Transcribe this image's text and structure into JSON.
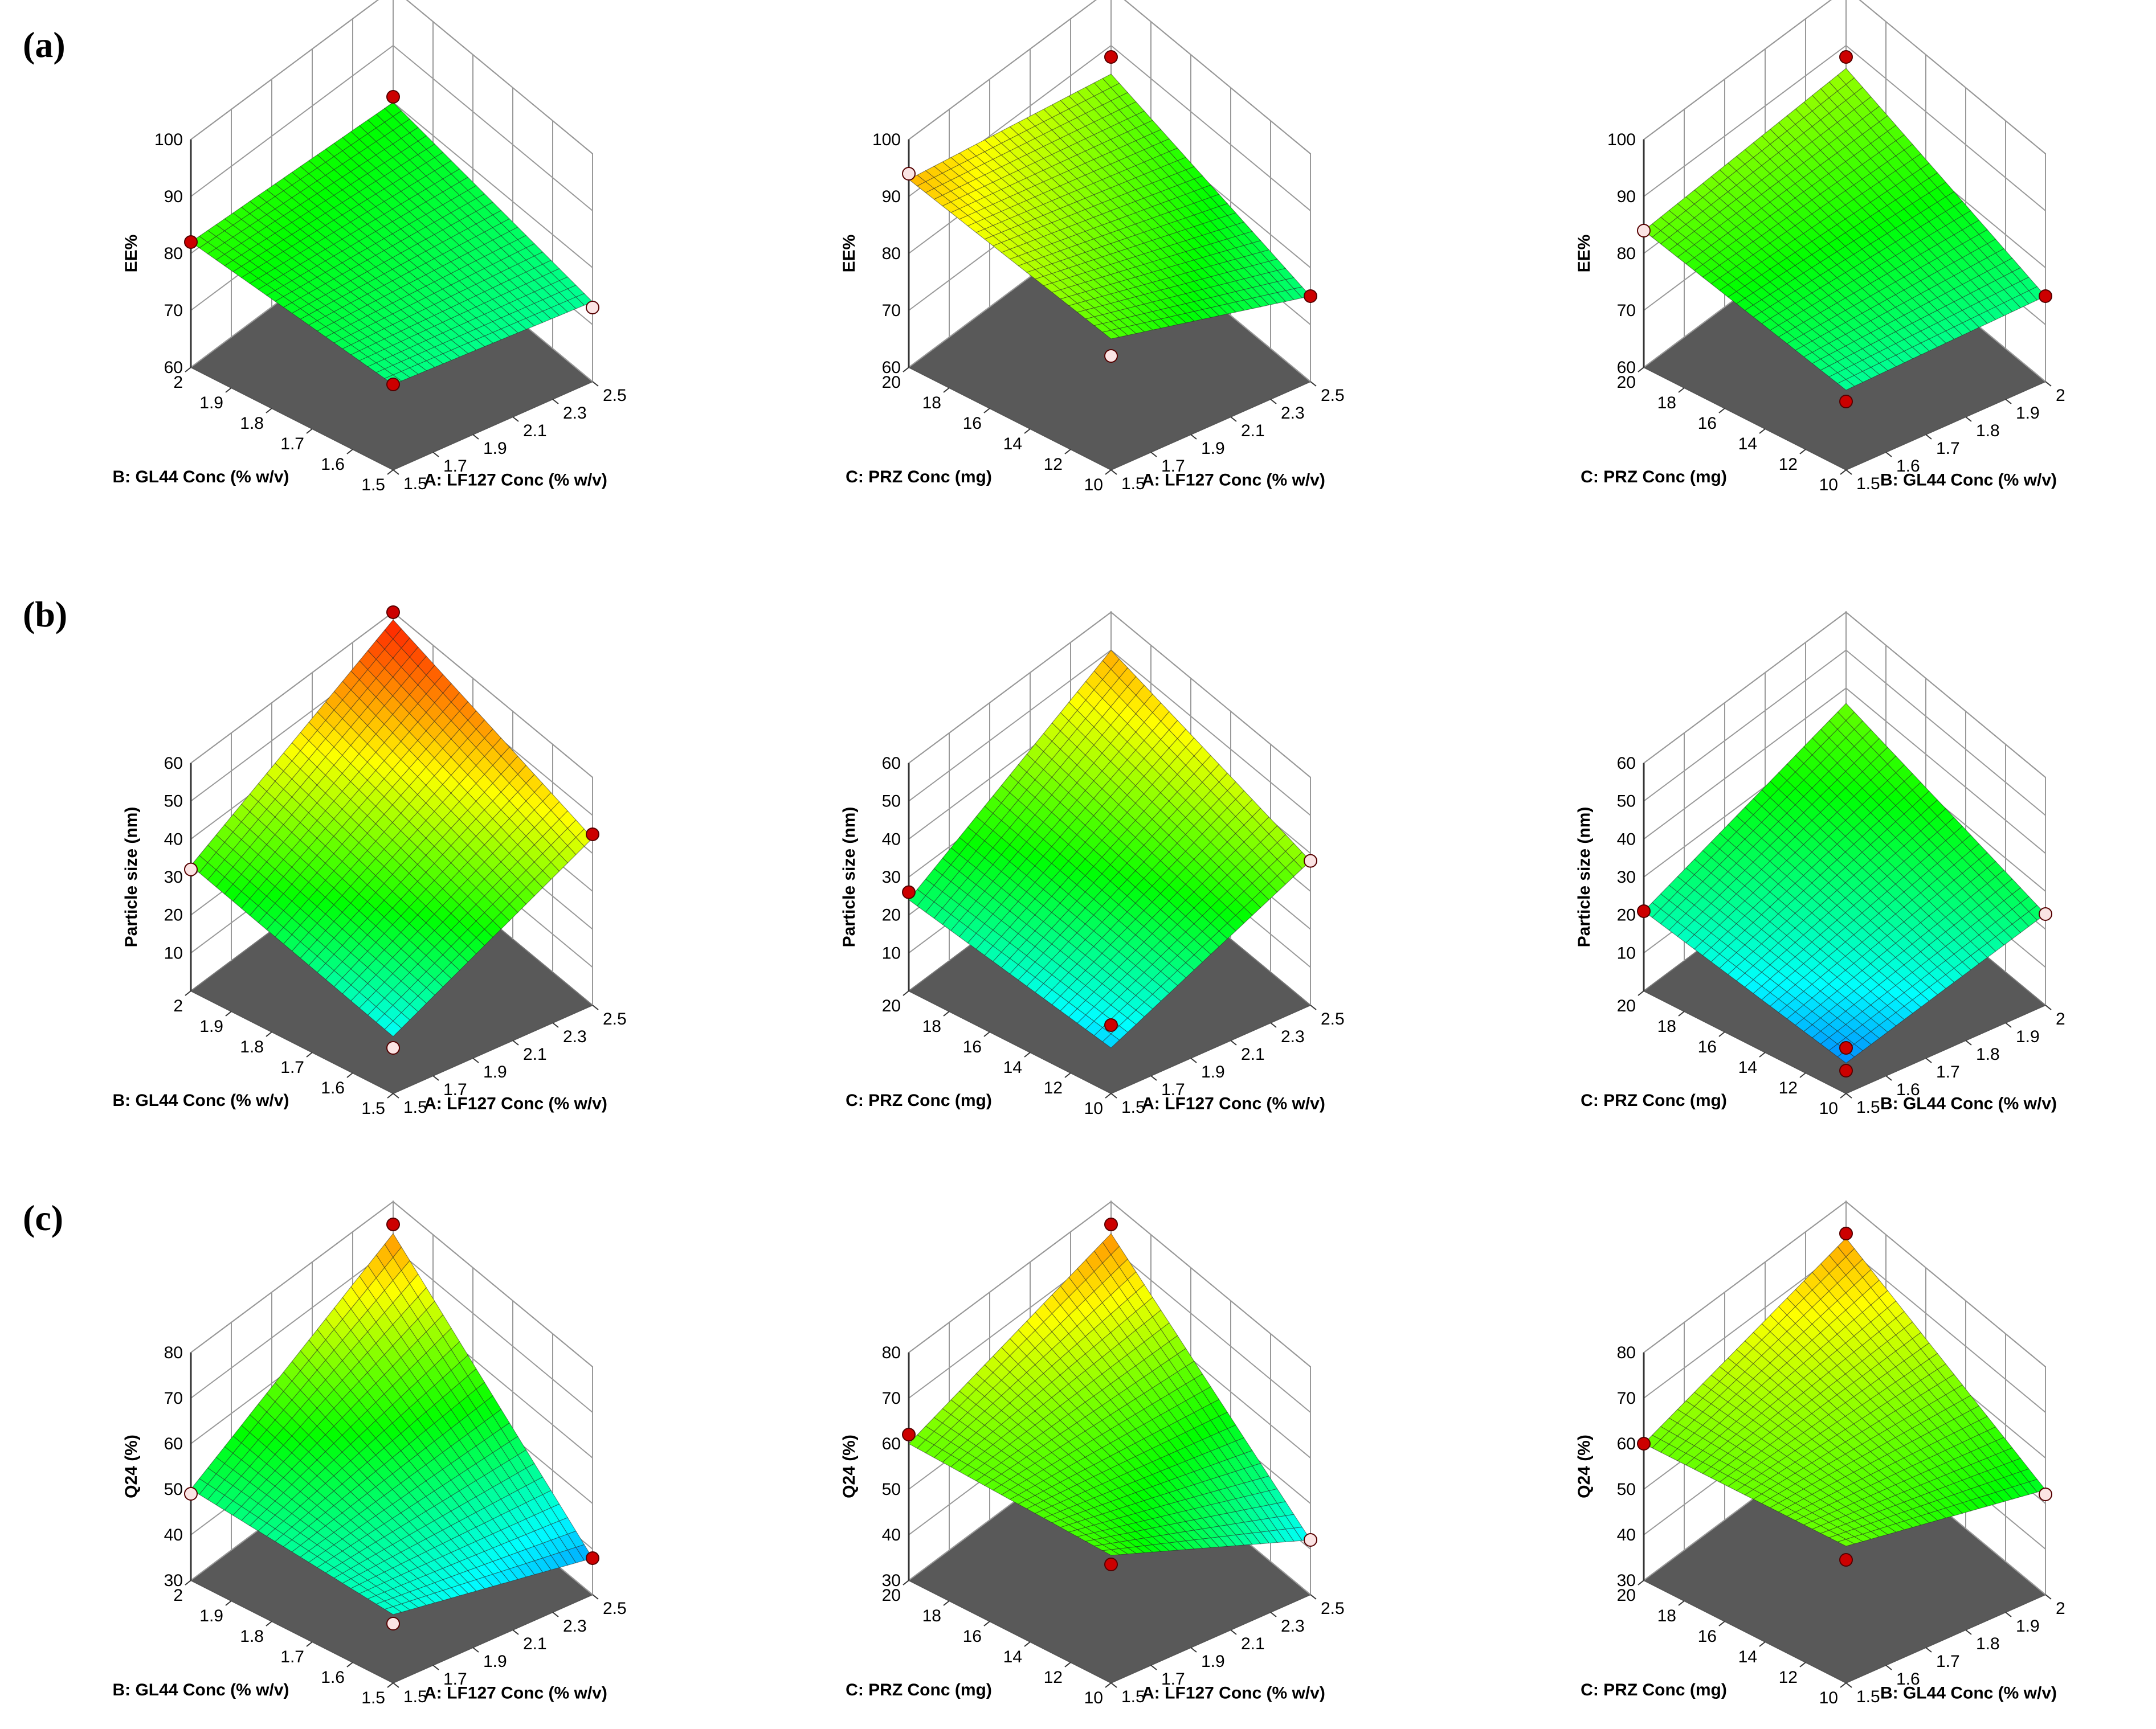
{
  "chart_data": [
    {
      "type": "surface",
      "row": "a",
      "panel_label": "(a)",
      "zlabel": "EE%",
      "zlim": [
        60,
        100
      ],
      "zticks": [
        "60",
        "70",
        "80",
        "90",
        "100"
      ],
      "xlabel": "A: LF127 Conc (% w/v)",
      "xticks": [
        "1.5",
        "1.7",
        "1.9",
        "2.1",
        "2.3",
        "2.5"
      ],
      "ylabel": "B: GL44 Conc (% w/v)",
      "yticks": [
        "1.5",
        "1.6",
        "1.7",
        "1.8",
        "1.9",
        "2"
      ],
      "corner_values": {
        "back": 80,
        "left": 82,
        "front": 75,
        "right": 74
      },
      "design_points": [
        {
          "corner": "left",
          "value": 82,
          "above": true
        },
        {
          "corner": "back",
          "value": 81,
          "above": true
        },
        {
          "corner": "front",
          "value": 75,
          "above": true
        },
        {
          "corner": "right",
          "value": 73,
          "above": false
        }
      ]
    },
    {
      "type": "surface",
      "row": "a",
      "zlabel": "EE%",
      "zlim": [
        60,
        100
      ],
      "zticks": [
        "60",
        "70",
        "80",
        "90",
        "100"
      ],
      "xlabel": "A: LF127 Conc (% w/v)",
      "xticks": [
        "1.5",
        "1.7",
        "1.9",
        "2.1",
        "2.3",
        "2.5"
      ],
      "ylabel": "C: PRZ Conc (mg)",
      "yticks": [
        "10",
        "12",
        "14",
        "16",
        "18",
        "20"
      ],
      "corner_values": {
        "back": 85,
        "left": 93,
        "front": 83,
        "right": 75
      },
      "design_points": [
        {
          "corner": "left",
          "value": 94,
          "above": false
        },
        {
          "corner": "back",
          "value": 88,
          "above": true
        },
        {
          "corner": "front",
          "value": 80,
          "above": false
        },
        {
          "corner": "right",
          "value": 75,
          "above": true
        }
      ]
    },
    {
      "type": "surface",
      "row": "a",
      "zlabel": "EE%",
      "zlim": [
        60,
        100
      ],
      "zticks": [
        "60",
        "70",
        "80",
        "90",
        "100"
      ],
      "xlabel": "B: GL44 Conc (% w/v)",
      "xticks": [
        "1.5",
        "1.6",
        "1.7",
        "1.8",
        "1.9",
        "2"
      ],
      "ylabel": "C: PRZ Conc (mg)",
      "yticks": [
        "10",
        "12",
        "14",
        "16",
        "18",
        "20"
      ],
      "corner_values": {
        "back": 86,
        "left": 84,
        "front": 74,
        "right": 75
      },
      "design_points": [
        {
          "corner": "left",
          "value": 84,
          "above": false
        },
        {
          "corner": "back",
          "value": 88,
          "above": true
        },
        {
          "corner": "front",
          "value": 72,
          "above": true
        },
        {
          "corner": "right",
          "value": 75,
          "above": true
        }
      ]
    },
    {
      "type": "surface",
      "row": "b",
      "panel_label": "(b)",
      "zlabel": "Particle size (nm)",
      "zlim": [
        0,
        60
      ],
      "zticks": [
        "10",
        "20",
        "30",
        "40",
        "50",
        "60"
      ],
      "xlabel": "A: LF127 Conc (% w/v)",
      "xticks": [
        "1.5",
        "1.7",
        "1.9",
        "2.1",
        "2.3",
        "2.5"
      ],
      "ylabel": "B: GL44 Conc (% w/v)",
      "yticks": [
        "1.5",
        "1.6",
        "1.7",
        "1.8",
        "1.9",
        "2"
      ],
      "corner_values": {
        "back": 58,
        "left": 33,
        "front": 15,
        "right": 44
      },
      "design_points": [
        {
          "corner": "back",
          "value": 60,
          "above": true
        },
        {
          "corner": "left",
          "value": 32,
          "above": false
        },
        {
          "corner": "front",
          "value": 12,
          "above": false
        },
        {
          "corner": "right",
          "value": 45,
          "above": true
        }
      ]
    },
    {
      "type": "surface",
      "row": "b",
      "zlabel": "Particle size (nm)",
      "zlim": [
        0,
        60
      ],
      "zticks": [
        "10",
        "20",
        "30",
        "40",
        "50",
        "60"
      ],
      "xlabel": "A: LF127 Conc (% w/v)",
      "xticks": [
        "1.5",
        "1.7",
        "1.9",
        "2.1",
        "2.3",
        "2.5"
      ],
      "ylabel": "C: PRZ Conc (mg)",
      "yticks": [
        "10",
        "12",
        "14",
        "16",
        "18",
        "20"
      ],
      "corner_values": {
        "back": 50,
        "left": 24,
        "front": 12,
        "right": 38
      },
      "design_points": [
        {
          "corner": "left",
          "value": 26,
          "above": true
        },
        {
          "corner": "front",
          "value": 18,
          "above": true
        },
        {
          "corner": "right",
          "value": 38,
          "above": false
        }
      ]
    },
    {
      "type": "surface",
      "row": "b",
      "zlabel": "Particle size (nm)",
      "zlim": [
        0,
        60
      ],
      "zticks": [
        "10",
        "20",
        "30",
        "40",
        "50",
        "60"
      ],
      "xlabel": "B: GL44 Conc (% w/v)",
      "xticks": [
        "1.5",
        "1.6",
        "1.7",
        "1.8",
        "1.9",
        "2"
      ],
      "ylabel": "C: PRZ Conc (mg)",
      "yticks": [
        "10",
        "12",
        "14",
        "16",
        "18",
        "20"
      ],
      "corner_values": {
        "back": 36,
        "left": 21,
        "front": 8,
        "right": 24
      },
      "design_points": [
        {
          "corner": "left",
          "value": 21,
          "above": true
        },
        {
          "corner": "front",
          "value": 12,
          "above": true
        },
        {
          "corner": "front",
          "value": 6,
          "above": true
        },
        {
          "corner": "right",
          "value": 24,
          "above": false
        }
      ]
    },
    {
      "type": "surface",
      "row": "c",
      "panel_label": "(c)",
      "zlabel": "Q24 (%)",
      "zlim": [
        30,
        80
      ],
      "zticks": [
        "30",
        "40",
        "50",
        "60",
        "70",
        "80"
      ],
      "xlabel": "A: LF127 Conc (% w/v)",
      "xticks": [
        "1.5",
        "1.7",
        "1.9",
        "2.1",
        "2.3",
        "2.5"
      ],
      "ylabel": "B: GL44 Conc (% w/v)",
      "yticks": [
        "1.5",
        "1.6",
        "1.7",
        "1.8",
        "1.9",
        "2"
      ],
      "corner_values": {
        "back": 73,
        "left": 50,
        "front": 45,
        "right": 38
      },
      "design_points": [
        {
          "corner": "back",
          "value": 75,
          "above": true
        },
        {
          "corner": "left",
          "value": 49,
          "above": false
        },
        {
          "corner": "front",
          "value": 43,
          "above": false
        },
        {
          "corner": "right",
          "value": 38,
          "above": true
        }
      ]
    },
    {
      "type": "surface",
      "row": "c",
      "zlabel": "Q24 (%)",
      "zlim": [
        30,
        80
      ],
      "zticks": [
        "30",
        "40",
        "50",
        "60",
        "70",
        "80"
      ],
      "xlabel": "A: LF127 Conc (% w/v)",
      "xticks": [
        "1.5",
        "1.7",
        "1.9",
        "2.1",
        "2.3",
        "2.5"
      ],
      "ylabel": "C: PRZ Conc (mg)",
      "yticks": [
        "10",
        "12",
        "14",
        "16",
        "18",
        "20"
      ],
      "corner_values": {
        "back": 73,
        "left": 60,
        "front": 58,
        "right": 42
      },
      "design_points": [
        {
          "corner": "left",
          "value": 62,
          "above": true
        },
        {
          "corner": "back",
          "value": 75,
          "above": true
        },
        {
          "corner": "front",
          "value": 56,
          "above": true
        },
        {
          "corner": "right",
          "value": 42,
          "above": false
        }
      ]
    },
    {
      "type": "surface",
      "row": "c",
      "zlabel": "Q24 (%)",
      "zlim": [
        30,
        80
      ],
      "zticks": [
        "30",
        "40",
        "50",
        "60",
        "70",
        "80"
      ],
      "xlabel": "B: GL44 Conc (% w/v)",
      "xticks": [
        "1.5",
        "1.6",
        "1.7",
        "1.8",
        "1.9",
        "2"
      ],
      "ylabel": "C: PRZ Conc (mg)",
      "yticks": [
        "10",
        "12",
        "14",
        "16",
        "18",
        "20"
      ],
      "corner_values": {
        "back": 72,
        "left": 60,
        "front": 60,
        "right": 53
      },
      "design_points": [
        {
          "corner": "left",
          "value": 60,
          "above": true
        },
        {
          "corner": "back",
          "value": 73,
          "above": true
        },
        {
          "corner": "front",
          "value": 57,
          "above": true
        },
        {
          "corner": "right",
          "value": 52,
          "above": false
        }
      ]
    }
  ]
}
